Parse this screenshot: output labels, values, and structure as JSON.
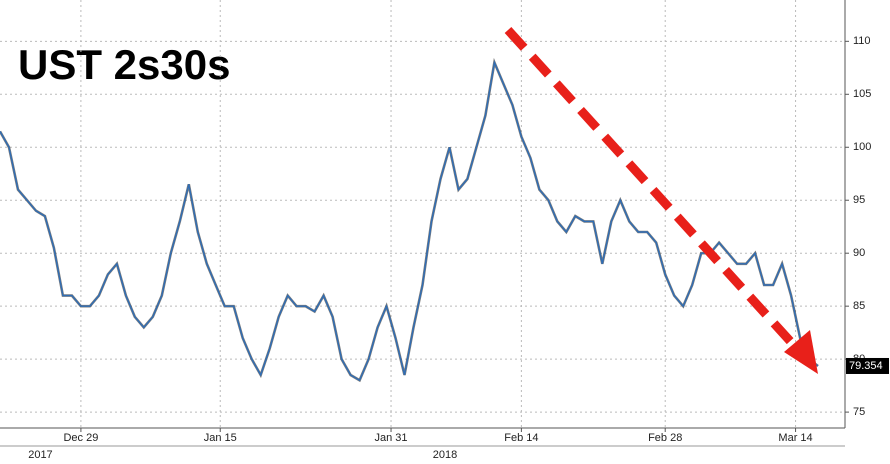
{
  "chart_data": {
    "type": "line",
    "title": "UST 2s30s",
    "xticks": [
      {
        "value": 9,
        "label": "Dec 29"
      },
      {
        "value": 24.5,
        "label": "Jan 15"
      },
      {
        "value": 43.5,
        "label": "Jan 31"
      },
      {
        "value": 58,
        "label": "Feb 14"
      },
      {
        "value": 74,
        "label": "Feb 28"
      },
      {
        "value": 88.5,
        "label": "Mar 14"
      }
    ],
    "year_ticks": [
      {
        "value": 4.5,
        "label": "2017"
      },
      {
        "value": 49.5,
        "label": "2018"
      }
    ],
    "xlim": [
      0,
      94
    ],
    "ylim": [
      73.5,
      113.9
    ],
    "yticks": [
      75,
      80,
      85,
      90,
      95,
      100,
      105,
      110
    ],
    "grid": true,
    "series": [
      {
        "color": "#2f6db5",
        "values": [
          101.5,
          100,
          96,
          95,
          94,
          93.5,
          90.5,
          86,
          86,
          85,
          85,
          86,
          88,
          89,
          86,
          84,
          83,
          84,
          86,
          90,
          93,
          96.5,
          92,
          89,
          87,
          85,
          85,
          82,
          80,
          78.5,
          81,
          84,
          86,
          85,
          85,
          84.5,
          86,
          84,
          80,
          78.5,
          78,
          80,
          83,
          85,
          82,
          78.5,
          83,
          87,
          93,
          97,
          100,
          96,
          97,
          100,
          103,
          108,
          106,
          104,
          101,
          99,
          96,
          95,
          93,
          92,
          93.5,
          93,
          93,
          89,
          93,
          95,
          93,
          92,
          92,
          91,
          88,
          86,
          85,
          87,
          90,
          90,
          91,
          90,
          89,
          89,
          90,
          87,
          87,
          89,
          86,
          82,
          80,
          79.354
        ]
      }
    ],
    "last_value_label": "79.354"
  }
}
